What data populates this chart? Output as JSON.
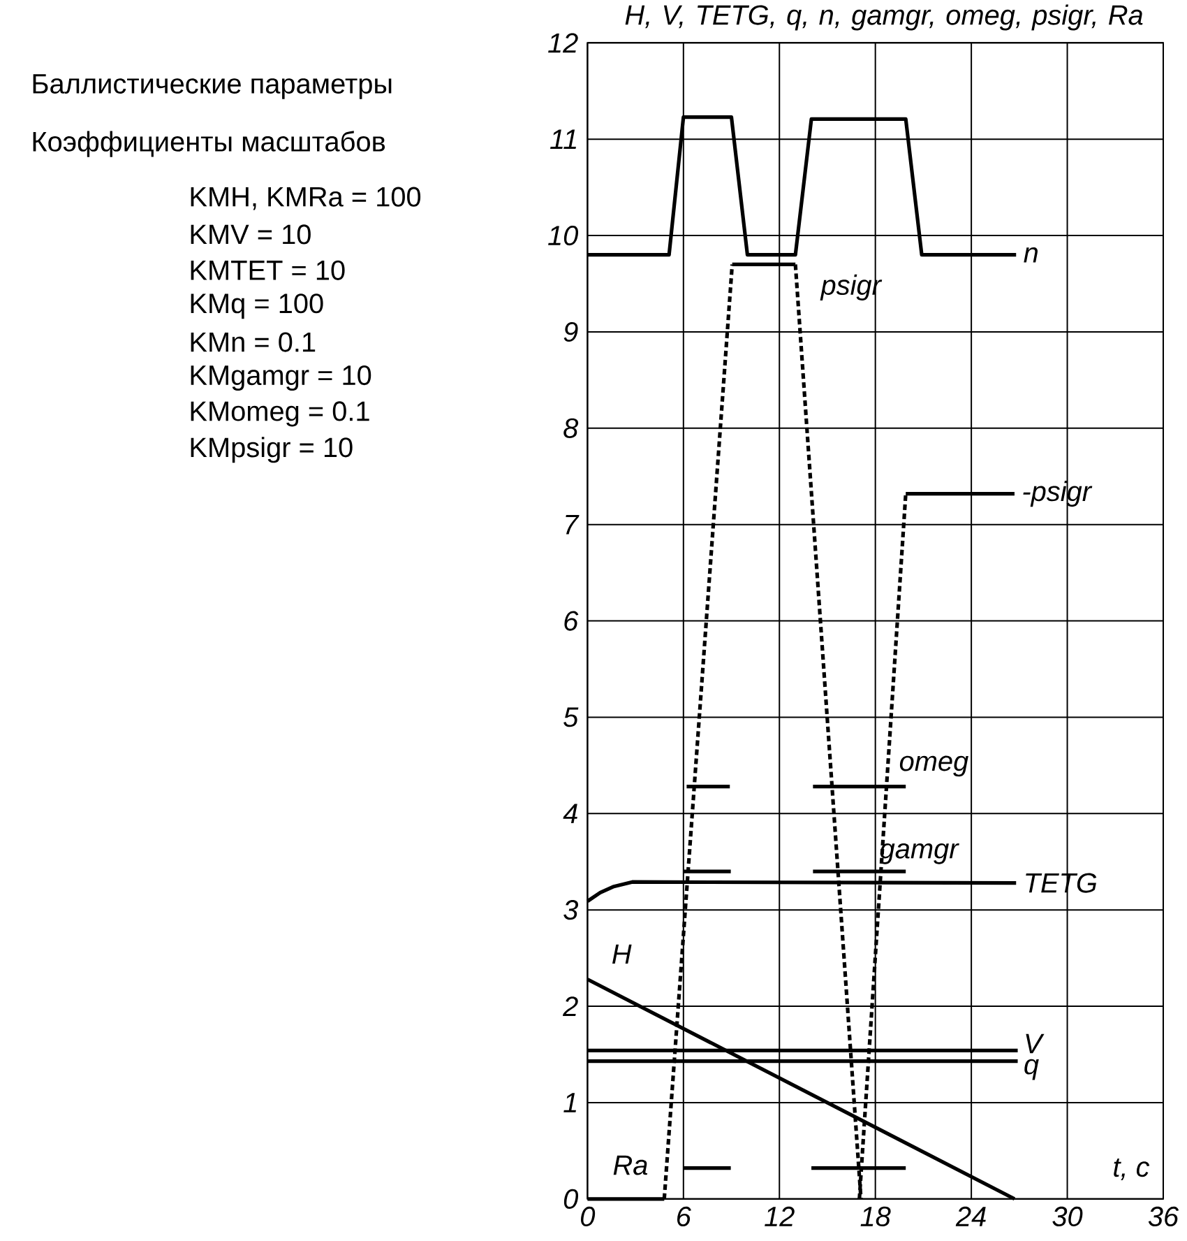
{
  "chart_data": {
    "type": "line",
    "title": "Баллистические параметры",
    "subtitle": "Коэффициенты масштабов",
    "annotations": [
      "KMH, KMRa = 100",
      "KMV = 10",
      "KMTET = 10",
      "KMq = 100",
      "KMn = 0.1",
      "KMgamgr = 10",
      "KMomeg = 0.1",
      "KMpsigr = 10"
    ],
    "ylabel": "H, V, TETG, q, n, gamgr, omeg, psigr, Ra",
    "xlabel": "t, c",
    "xlim": [
      0,
      36
    ],
    "ylim": [
      0,
      12
    ],
    "xticks": [
      0,
      6,
      12,
      18,
      24,
      30,
      36
    ],
    "yticks": [
      0,
      1,
      2,
      3,
      4,
      5,
      6,
      7,
      8,
      9,
      10,
      11,
      12
    ],
    "grid": true,
    "line_style": "solid",
    "marker": "none",
    "series": [
      {
        "name": "H",
        "color": "#000000",
        "x": [
          0,
          26.7
        ],
        "values": [
          2.28,
          0
        ]
      },
      {
        "name": "V",
        "color": "#000000",
        "x": [
          0,
          26.9
        ],
        "values": [
          1.54,
          1.54
        ]
      },
      {
        "name": "q",
        "color": "#000000",
        "x": [
          0,
          26.9
        ],
        "values": [
          1.43,
          1.43
        ]
      },
      {
        "name": "TETG",
        "color": "#000000",
        "x": [
          0,
          0.8,
          1.6,
          2.8,
          26.8
        ],
        "values": [
          3.09,
          3.18,
          3.24,
          3.29,
          3.28
        ]
      },
      {
        "name": "n",
        "color": "#000000",
        "x": [
          0,
          5.1,
          6.0,
          9.0,
          10.0,
          13.0,
          14.0,
          19.9,
          20.9,
          26.8
        ],
        "values": [
          9.8,
          9.8,
          11.23,
          11.23,
          9.8,
          9.8,
          11.21,
          11.21,
          9.8,
          9.8
        ]
      },
      {
        "name": "gamgr",
        "color": "#000000",
        "x": [
          6.0,
          8.96,
          11,
          14.1,
          19.9
        ],
        "values": [
          3.4,
          3.4,
          null,
          3.4,
          3.4
        ]
      },
      {
        "name": "omeg",
        "color": "#000000",
        "x": [
          6.2,
          8.9,
          11,
          14.1,
          19.9
        ],
        "values": [
          4.28,
          4.28,
          null,
          4.28,
          4.28
        ]
      },
      {
        "name": "Ra",
        "color": "#000000",
        "x": [
          6.0,
          8.96,
          11,
          14.0,
          19.9
        ],
        "values": [
          0.32,
          0.32,
          null,
          0.32,
          0.32
        ]
      },
      {
        "name": "psigr",
        "color": "#000000",
        "x": [
          9.05,
          13.0
        ],
        "values": [
          9.7,
          9.7
        ]
      },
      {
        "name": "-psigr",
        "color": "#000000",
        "x": [
          19.9,
          26.7
        ],
        "values": [
          7.32,
          7.32
        ]
      },
      {
        "color": "#000000",
        "x": [
          0,
          4.8
        ],
        "values": [
          0,
          0
        ]
      },
      {
        "color": "#000000",
        "line_style": "dashed",
        "x": [
          4.8,
          9.05
        ],
        "values": [
          0,
          9.7
        ]
      },
      {
        "color": "#000000",
        "line_style": "dashed",
        "x": [
          13.0,
          17.1
        ],
        "values": [
          9.7,
          0
        ]
      },
      {
        "color": "#000000",
        "line_style": "dashed",
        "x": [
          17.0,
          19.9
        ],
        "values": [
          0,
          7.32
        ]
      }
    ]
  }
}
